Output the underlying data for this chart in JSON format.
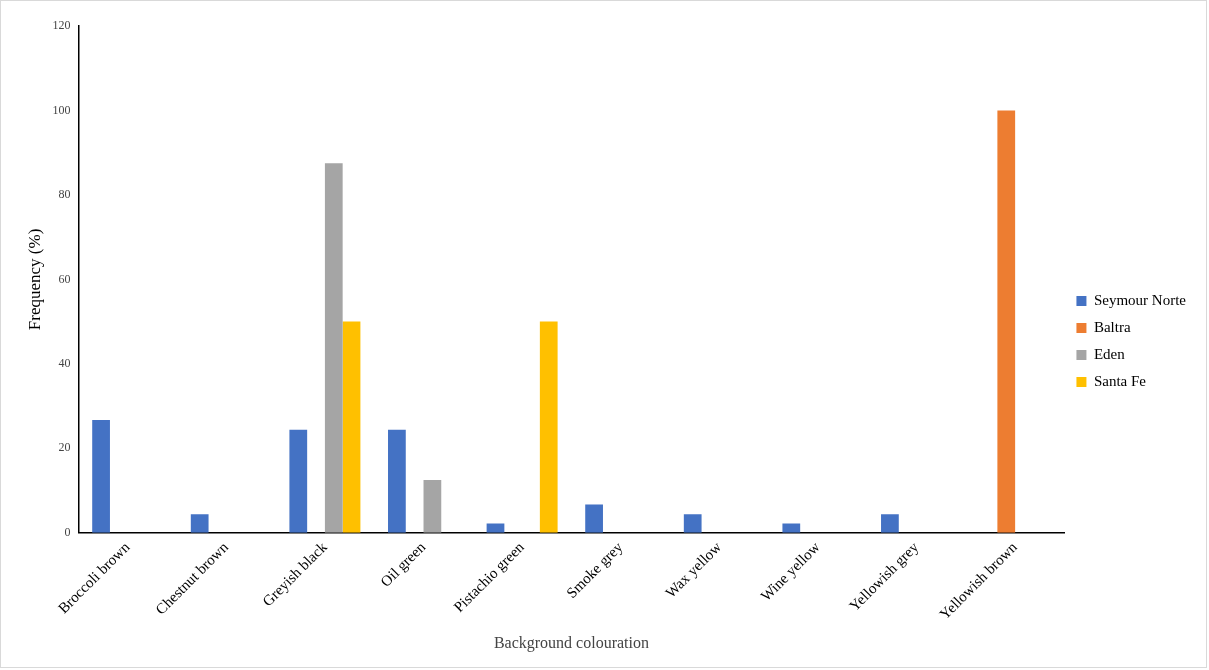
{
  "chart_data": {
    "type": "bar",
    "xlabel": "Background colouration",
    "ylabel": "Frequency (%)",
    "categories": [
      "Broccoli brown",
      "Chestnut brown",
      "Greyish black",
      "Oil green",
      "Pistachio green",
      "Smoke grey",
      "Wax yellow",
      "Wine yellow",
      "Yellowish grey",
      "Yellowish brown"
    ],
    "series": [
      {
        "name": "Seymour Norte",
        "color": "#4472c4",
        "values": [
          26.7,
          4.4,
          24.4,
          24.4,
          2.2,
          6.7,
          4.4,
          2.2,
          4.4,
          0
        ]
      },
      {
        "name": "Baltra",
        "color": "#ed7d31",
        "values": [
          0,
          0,
          0,
          0,
          0,
          0,
          0,
          0,
          0,
          100
        ]
      },
      {
        "name": "Eden",
        "color": "#a5a5a5",
        "values": [
          0,
          0,
          87.5,
          12.5,
          0,
          0,
          0,
          0,
          0,
          0
        ]
      },
      {
        "name": "Santa Fe",
        "color": "#ffc000",
        "values": [
          0,
          0,
          50,
          0,
          50,
          0,
          0,
          0,
          0,
          0
        ]
      }
    ],
    "ylim": [
      0,
      120
    ],
    "yticks": [
      0,
      20,
      40,
      60,
      80,
      100,
      120
    ],
    "grid": false,
    "legend": "right"
  }
}
